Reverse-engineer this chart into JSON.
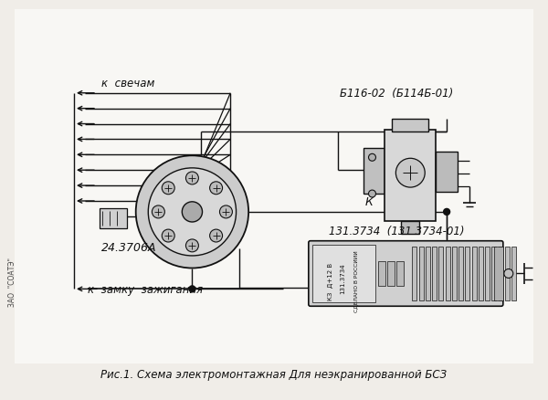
{
  "bg_color": "#f0ede8",
  "title": "Рис.1. Схема электромонтажная Для неэкранированной БСЗ",
  "label_sparks": "к  свечам",
  "label_ignition": "к  замку  зажигания",
  "label_dist": "24.3706А",
  "label_coil": "Б116-02  (Б114Б-01)",
  "label_k": "К",
  "label_module": "131.3734  (131.3734-01)",
  "side_label": "ЗАО  \"СОАТЭ\""
}
